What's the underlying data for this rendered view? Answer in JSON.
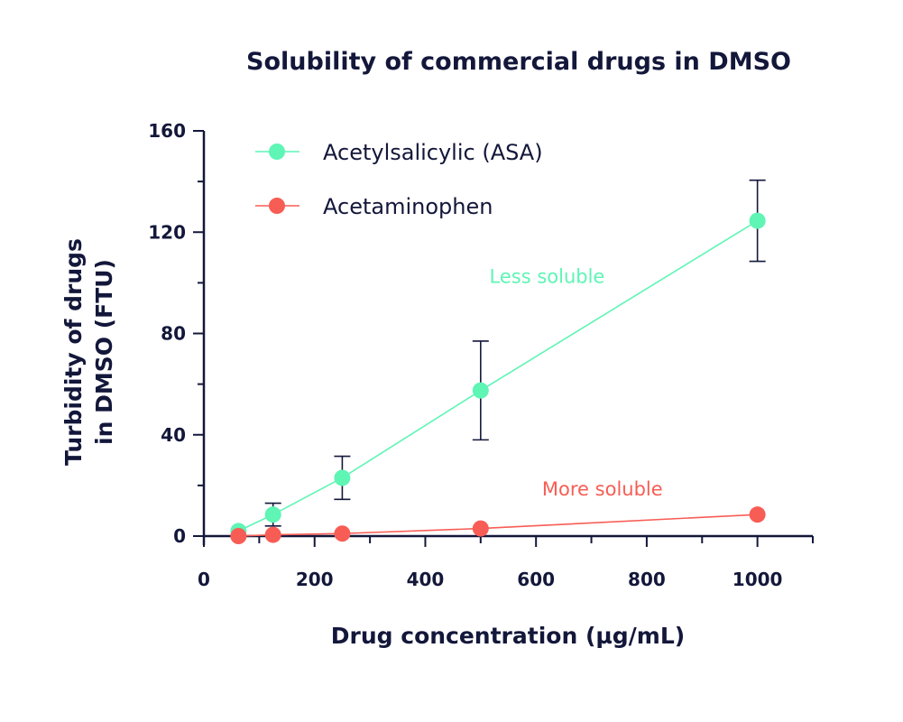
{
  "chart_data": {
    "type": "line",
    "title": "Solubility of commercial drugs in DMSO",
    "xlabel": "Drug concentration (µg/mL)",
    "ylabel": "Turbidity of drugs in DMSO (FTU)",
    "ylabel_lines": [
      "Turbidity of drugs",
      "in DMSO (FTU)"
    ],
    "xlim": [
      0,
      1100
    ],
    "ylim": [
      0,
      160
    ],
    "xticks": [
      0,
      200,
      400,
      600,
      800,
      1000
    ],
    "yticks": [
      0,
      40,
      80,
      120,
      160
    ],
    "legend_position": "top-left",
    "grid": false,
    "series": [
      {
        "name": "Acetylsalicylic (ASA)",
        "color": "#5ef5b5",
        "x": [
          62.5,
          125,
          250,
          500,
          1000
        ],
        "y": [
          2,
          8.5,
          23,
          57.5,
          124.5
        ],
        "error": [
          0,
          4.5,
          8.5,
          19.5,
          16
        ]
      },
      {
        "name": "Acetaminophen",
        "color": "#f75d55",
        "x": [
          62.5,
          125,
          250,
          500,
          1000
        ],
        "y": [
          0,
          0.5,
          1,
          3,
          8.5
        ],
        "error": [
          0,
          0,
          0,
          0,
          0
        ]
      }
    ],
    "annotations": [
      {
        "text": "Less soluble",
        "color": "#5ef5b5",
        "x": 620,
        "y": 100
      },
      {
        "text": "More soluble",
        "color": "#f75d55",
        "x": 720,
        "y": 16
      }
    ]
  }
}
